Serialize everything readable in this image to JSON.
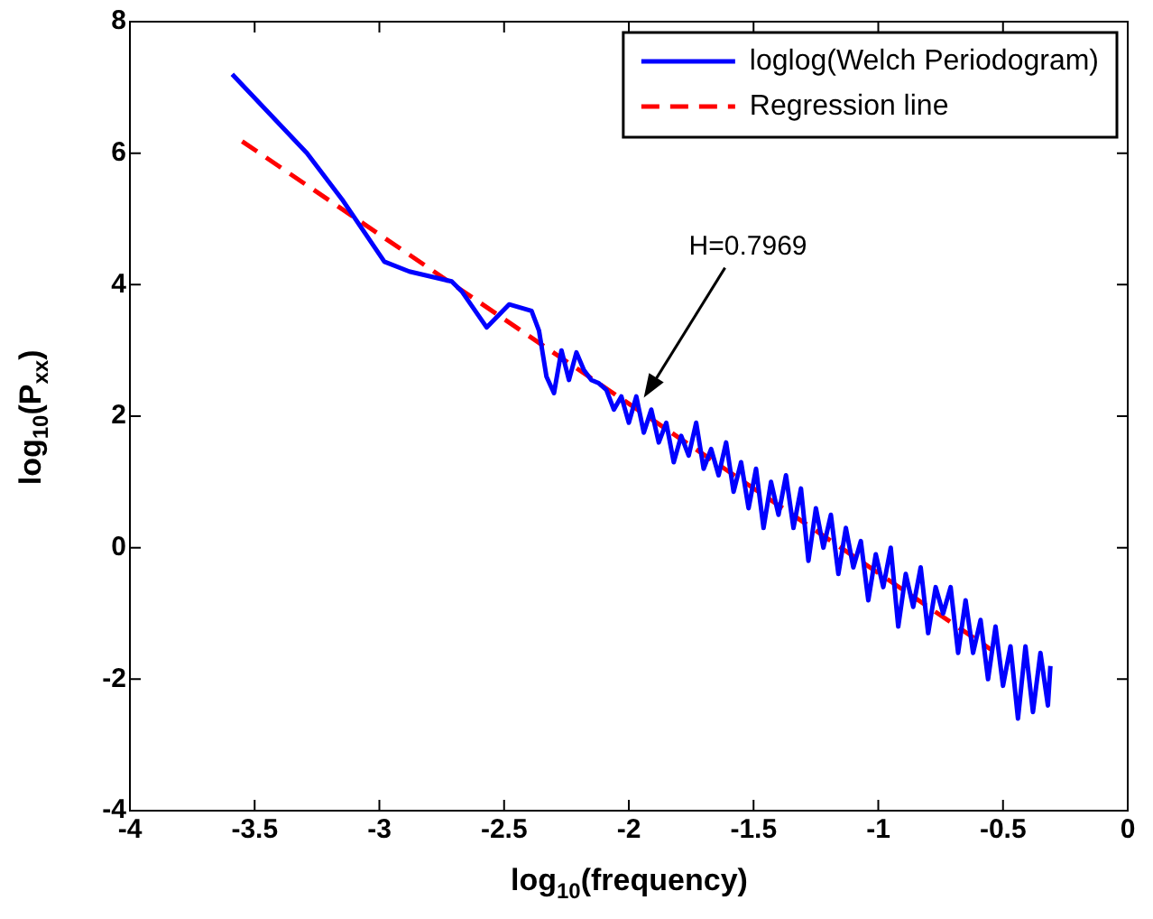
{
  "chart_data": {
    "type": "line",
    "xlabel": "log$_{10}$(frequency)",
    "ylabel": "log$_{10}$(P$_{xx}$)",
    "xlim": [
      -4,
      0
    ],
    "xticks": [
      -4,
      -3.5,
      -3,
      -2.5,
      -2,
      -1.5,
      -1,
      -0.5,
      0
    ],
    "ylim": [
      -4,
      8
    ],
    "yticks": [
      -4,
      -2,
      0,
      2,
      4,
      6,
      8
    ],
    "legend": "top right",
    "marker": "none",
    "series": [
      {
        "name": "loglog(Welch Periodogram)",
        "color": "#0000ff",
        "line_style": "solid",
        "x": [
          -3.59,
          -3.29,
          -3.15,
          -2.98,
          -2.88,
          -2.71,
          -2.67,
          -2.57,
          -2.48,
          -2.39,
          -2.36,
          -2.33,
          -2.3,
          -2.27,
          -2.24,
          -2.21,
          -2.18,
          -2.15,
          -2.12,
          -2.09,
          -2.06,
          -2.03,
          -2.0,
          -1.97,
          -1.94,
          -1.91,
          -1.88,
          -1.85,
          -1.82,
          -1.79,
          -1.76,
          -1.73,
          -1.7,
          -1.67,
          -1.64,
          -1.61,
          -1.58,
          -1.55,
          -1.52,
          -1.49,
          -1.46,
          -1.43,
          -1.4,
          -1.37,
          -1.34,
          -1.31,
          -1.28,
          -1.25,
          -1.22,
          -1.19,
          -1.16,
          -1.13,
          -1.1,
          -1.07,
          -1.04,
          -1.01,
          -0.98,
          -0.95,
          -0.92,
          -0.89,
          -0.86,
          -0.83,
          -0.8,
          -0.77,
          -0.74,
          -0.71,
          -0.68,
          -0.65,
          -0.62,
          -0.59,
          -0.56,
          -0.53,
          -0.5,
          -0.47,
          -0.44,
          -0.41,
          -0.38,
          -0.35,
          -0.32,
          -0.31
        ],
        "values": [
          7.2,
          6.0,
          5.3,
          4.35,
          4.2,
          4.05,
          3.9,
          3.35,
          3.7,
          3.6,
          3.3,
          2.6,
          2.35,
          3.0,
          2.55,
          2.97,
          2.7,
          2.55,
          2.5,
          2.4,
          2.1,
          2.3,
          1.9,
          2.3,
          1.75,
          2.1,
          1.6,
          1.9,
          1.3,
          1.7,
          1.4,
          1.9,
          1.2,
          1.5,
          1.1,
          1.6,
          0.85,
          1.3,
          0.6,
          1.2,
          0.3,
          1.0,
          0.5,
          1.1,
          0.3,
          0.9,
          -0.2,
          0.6,
          0.0,
          0.5,
          -0.4,
          0.3,
          -0.3,
          0.1,
          -0.8,
          -0.1,
          -0.6,
          0.0,
          -1.2,
          -0.4,
          -0.9,
          -0.3,
          -1.3,
          -0.6,
          -1.0,
          -0.6,
          -1.6,
          -0.8,
          -1.6,
          -1.1,
          -2.0,
          -1.2,
          -2.1,
          -1.5,
          -2.6,
          -1.5,
          -2.5,
          -1.6,
          -2.4,
          -1.8
        ]
      },
      {
        "name": "Regression line",
        "color": "#ff0000",
        "line_style": "dashed",
        "x": [
          -3.55,
          -0.54
        ],
        "values": [
          6.18,
          -1.57
        ]
      }
    ],
    "annotations": [
      {
        "text": "H=0.7969",
        "x": -1.94,
        "y": 2.28
      }
    ]
  }
}
